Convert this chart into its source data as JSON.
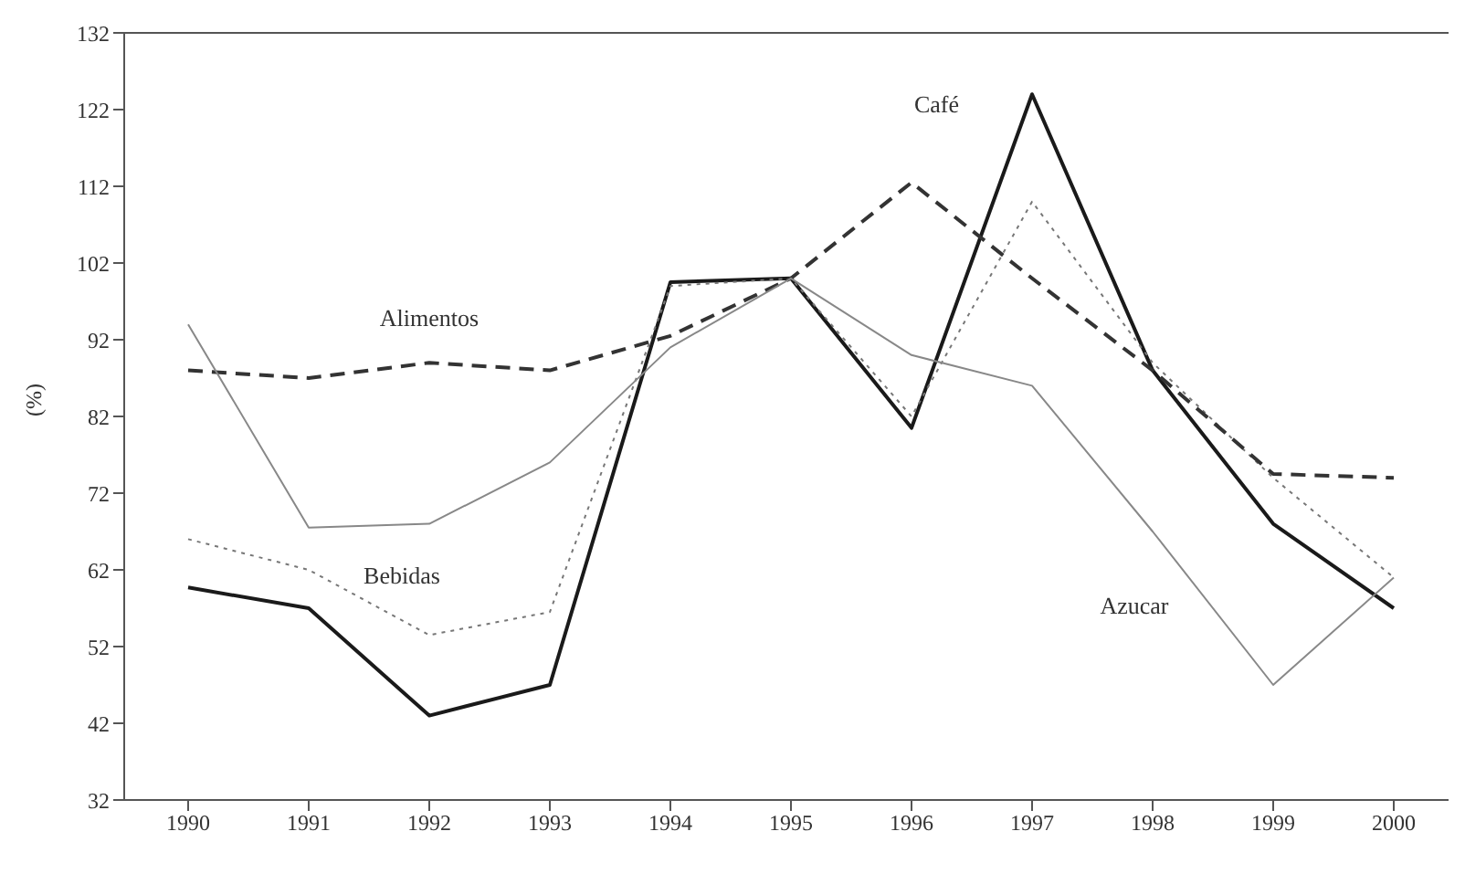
{
  "chart_data": {
    "type": "line",
    "ylabel": "(%)",
    "categories": [
      "1990",
      "1991",
      "1992",
      "1993",
      "1994",
      "1995",
      "1996",
      "1997",
      "1998",
      "1999",
      "2000"
    ],
    "series": [
      {
        "name": "Café",
        "color": "#1a1a1a",
        "line_style": "solid",
        "values": [
          59.7,
          57,
          43,
          47,
          99.5,
          100,
          80.5,
          124,
          88,
          68,
          57
        ]
      },
      {
        "name": "Bebidas",
        "color": "#777777",
        "line_style": "dotted",
        "values": [
          66,
          62,
          53.5,
          56.5,
          99,
          100,
          82,
          110,
          89,
          74,
          61
        ]
      },
      {
        "name": "Alimentos",
        "color": "#333333",
        "line_style": "dashed",
        "values": [
          88,
          87,
          89,
          88,
          92.5,
          100,
          112.5,
          100,
          88,
          74.5,
          74
        ]
      },
      {
        "name": "Azucar",
        "color": "#888888",
        "line_style": "solid",
        "values": [
          94,
          67.5,
          68,
          76,
          91,
          100,
          90,
          86,
          67,
          47,
          61
        ]
      }
    ],
    "ylim": [
      32,
      132
    ],
    "yticks": [
      32,
      42,
      52,
      62,
      72,
      82,
      92,
      102,
      112,
      122,
      132
    ],
    "grid": false,
    "legend": false,
    "marker": "none"
  }
}
